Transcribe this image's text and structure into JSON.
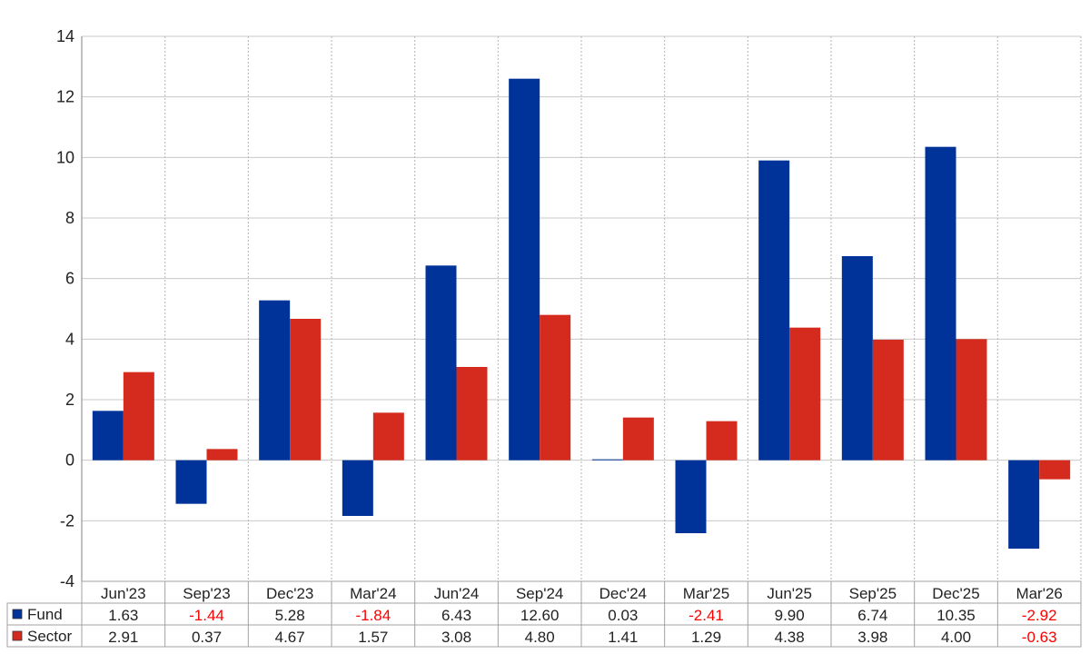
{
  "chart_data": {
    "type": "bar",
    "categories": [
      "Jun'23",
      "Sep'23",
      "Dec'23",
      "Mar'24",
      "Jun'24",
      "Sep'24",
      "Dec'24",
      "Mar'25",
      "Jun'25",
      "Sep'25",
      "Dec'25",
      "Mar'26"
    ],
    "series": [
      {
        "name": "Fund",
        "color": "#003399",
        "values": [
          1.63,
          -1.44,
          5.28,
          -1.84,
          6.43,
          12.6,
          0.03,
          -2.41,
          9.9,
          6.74,
          10.35,
          -2.92
        ],
        "labels": [
          "1.63",
          "-1.44",
          "5.28",
          "-1.84",
          "6.43",
          "12.60",
          "0.03",
          "-2.41",
          "9.90",
          "6.74",
          "10.35",
          "-2.92"
        ]
      },
      {
        "name": "Sector",
        "color": "#d52b1e",
        "values": [
          2.91,
          0.37,
          4.67,
          1.57,
          3.08,
          4.8,
          1.41,
          1.29,
          4.38,
          3.98,
          4.0,
          -0.63
        ],
        "labels": [
          "2.91",
          "0.37",
          "4.67",
          "1.57",
          "3.08",
          "4.80",
          "1.41",
          "1.29",
          "4.38",
          "3.98",
          "4.00",
          "-0.63"
        ]
      }
    ],
    "ylim": [
      -4,
      14
    ],
    "yticks": [
      "14",
      "12",
      "10",
      "8",
      "6",
      "4",
      "2",
      "0",
      "-2",
      "-4"
    ],
    "ytick_values": [
      14,
      12,
      10,
      8,
      6,
      4,
      2,
      0,
      -2,
      -4
    ],
    "negative_label_color": "#ff0000",
    "grid": true,
    "legend": "table-below",
    "title": "",
    "xlabel": "",
    "ylabel": ""
  }
}
